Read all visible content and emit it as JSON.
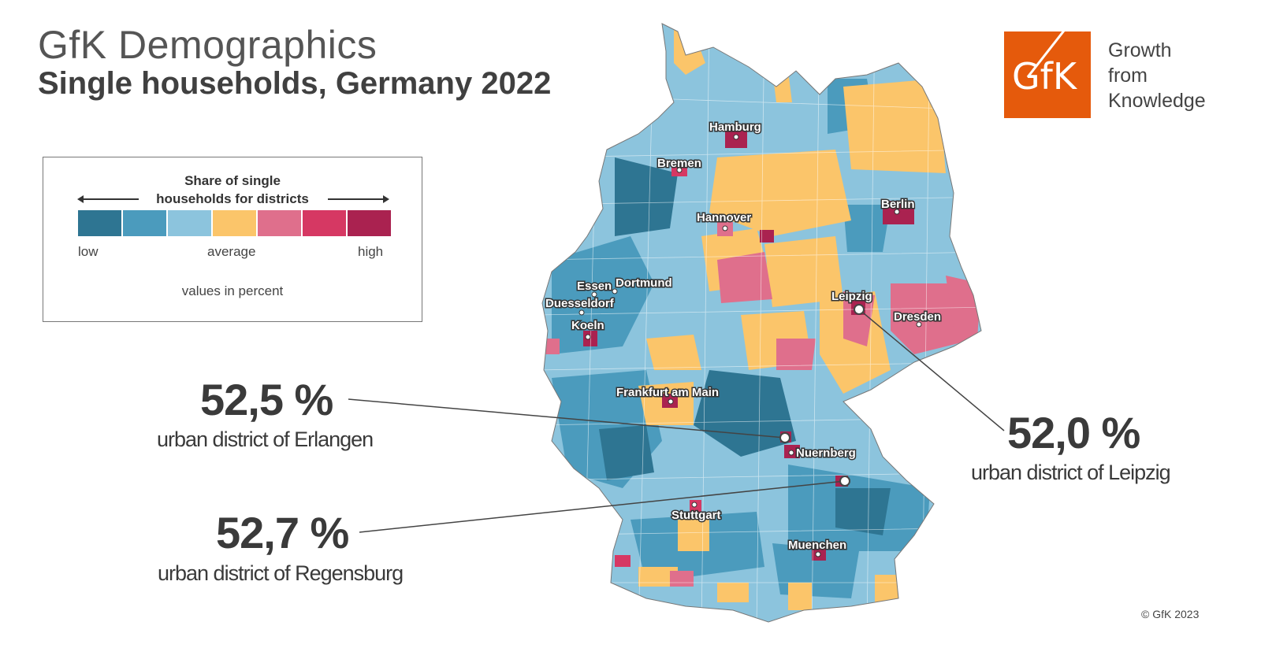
{
  "header": {
    "title": "GfK Demographics",
    "subtitle": "Single households, Germany 2022"
  },
  "legend": {
    "title_line1": "Share of single",
    "title_line2": "households for districts",
    "low_label": "low",
    "average_label": "average",
    "high_label": "high",
    "note": "values in percent",
    "colors": [
      "#2e7592",
      "#4b9bbd",
      "#8cc4dd",
      "#fbc56a",
      "#df6f8c",
      "#d63863",
      "#aa2250"
    ]
  },
  "map": {
    "type": "choropleth",
    "region": "Germany",
    "level": "districts",
    "cities": {
      "hamburg": "Hamburg",
      "bremen": "Bremen",
      "berlin": "Berlin",
      "hannover": "Hannover",
      "essen": "Essen",
      "dortmund": "Dortmund",
      "duesseldorf": "Duesseldorf",
      "koeln": "Koeln",
      "leipzig": "Leipzig",
      "dresden": "Dresden",
      "frankfurt": "Frankfurt am Main",
      "nuernberg": "Nuernberg",
      "stuttgart": "Stuttgart",
      "muenchen": "Muenchen"
    }
  },
  "callouts": {
    "erlangen": {
      "value": "52,5 %",
      "label": "urban district of Erlangen"
    },
    "regensburg": {
      "value": "52,7 %",
      "label": "urban district of Regensburg"
    },
    "leipzig": {
      "value": "52,0 %",
      "label": "urban district of Leipzig"
    }
  },
  "logo": {
    "brand": "GfK",
    "tagline_line1": "Growth",
    "tagline_line2": "from",
    "tagline_line3": "Knowledge",
    "brand_color": "#e55a0c"
  },
  "footer": {
    "copyright": "© GfK 2023"
  }
}
